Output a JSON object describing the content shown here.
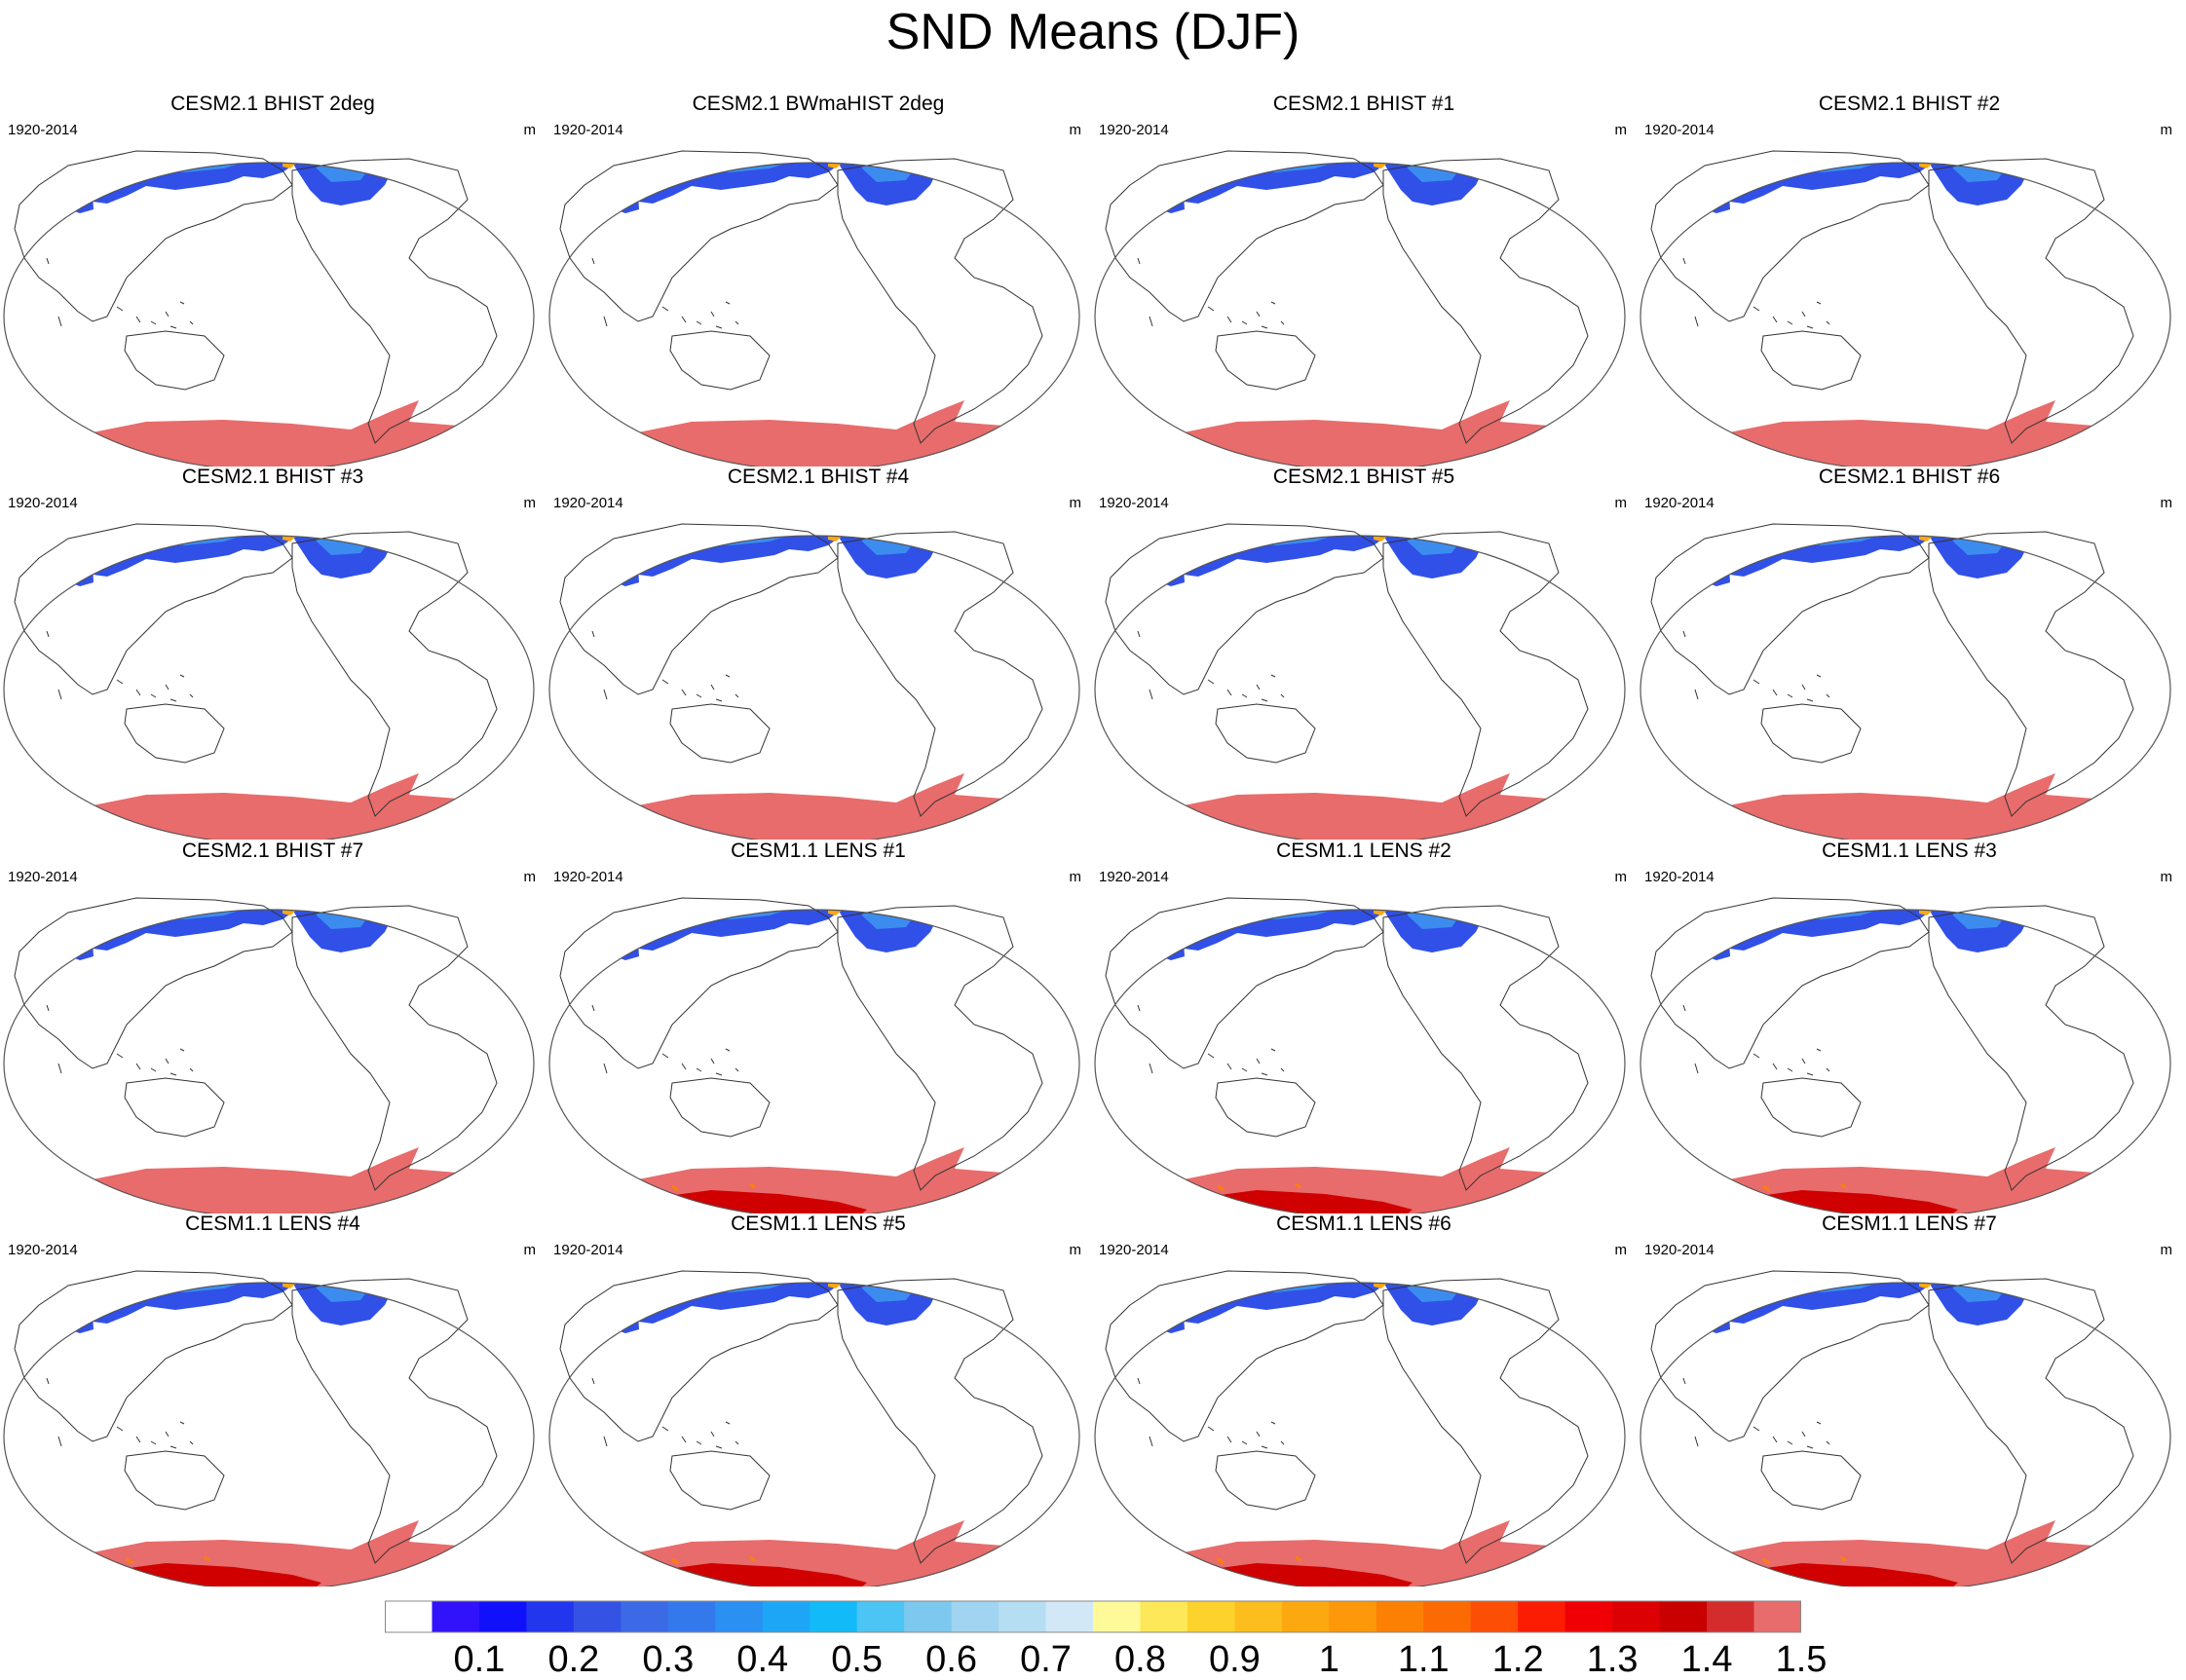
{
  "figure": {
    "title": "SND Means (DJF)",
    "period": "1920-2014",
    "units": "m"
  },
  "panels": [
    {
      "title": "CESM2.1 BHIST 2deg",
      "model": "cesm2"
    },
    {
      "title": "CESM2.1 BWmaHIST 2deg",
      "model": "cesm2"
    },
    {
      "title": "CESM2.1 BHIST #1",
      "model": "cesm2"
    },
    {
      "title": "CESM2.1 BHIST #2",
      "model": "cesm2"
    },
    {
      "title": "CESM2.1 BHIST #3",
      "model": "cesm2"
    },
    {
      "title": "CESM2.1 BHIST #4",
      "model": "cesm2"
    },
    {
      "title": "CESM2.1 BHIST #5",
      "model": "cesm2"
    },
    {
      "title": "CESM2.1 BHIST #6",
      "model": "cesm2"
    },
    {
      "title": "CESM2.1 BHIST #7",
      "model": "cesm2"
    },
    {
      "title": "CESM1.1 LENS #1",
      "model": "cesm1"
    },
    {
      "title": "CESM1.1 LENS #2",
      "model": "cesm1"
    },
    {
      "title": "CESM1.1 LENS #3",
      "model": "cesm1"
    },
    {
      "title": "CESM1.1 LENS #4",
      "model": "cesm1"
    },
    {
      "title": "CESM1.1 LENS #5",
      "model": "cesm1"
    },
    {
      "title": "CESM1.1 LENS #6",
      "model": "cesm1"
    },
    {
      "title": "CESM1.1 LENS #7",
      "model": "cesm1"
    }
  ],
  "colorbar": {
    "labels": [
      "0.1",
      "0.2",
      "0.3",
      "0.4",
      "0.5",
      "0.6",
      "0.7",
      "0.8",
      "0.9",
      "1",
      "1.1",
      "1.2",
      "1.3",
      "1.4",
      "1.5"
    ],
    "colors": [
      "#ffffff",
      "#3212fa",
      "#1010fa",
      "#2236ee",
      "#3452e4",
      "#3c6ae6",
      "#3479ec",
      "#2a90f2",
      "#1ea6f6",
      "#12baf8",
      "#4cc4f4",
      "#7cc8ee",
      "#a0d4f0",
      "#b6def2",
      "#d2e8f6",
      "#fefa9a",
      "#fce858",
      "#fcd22c",
      "#fcbe1e",
      "#fca810",
      "#fc980a",
      "#fc8004",
      "#fc6a04",
      "#fc4e04",
      "#fc1c04",
      "#f00004",
      "#dc0004",
      "#c80000",
      "#d42c2c",
      "#e86c6c"
    ]
  },
  "legend_colors": {
    "antarctica_cesm2": "#e86c6c",
    "antarctica_cesm1_core": "#d00000",
    "greenland": "#e86c6c",
    "snow_low": "#3050e8",
    "snow_mid": "#3c8cf0",
    "snow_high": "#90c8f0",
    "coastline": "#333333",
    "outline": "#555555"
  }
}
